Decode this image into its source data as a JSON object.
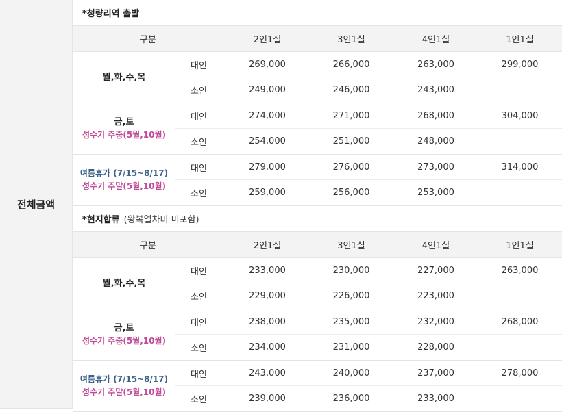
{
  "side_label": "전체금액",
  "sections": [
    {
      "title": "*청량리역 출발",
      "note": "",
      "headers": [
        "구분",
        "2인1실",
        "3인1실",
        "4인1실",
        "1인1실"
      ],
      "groups": [
        {
          "line1": "월,화,수,목",
          "line2": "",
          "rows": [
            {
              "type": "대인",
              "v": [
                "269,000",
                "266,000",
                "263,000",
                "299,000"
              ]
            },
            {
              "type": "소인",
              "v": [
                "249,000",
                "246,000",
                "243,000",
                ""
              ]
            }
          ]
        },
        {
          "line1": "금,토",
          "line2": "성수기 주중(5월,10월)",
          "rows": [
            {
              "type": "대인",
              "v": [
                "274,000",
                "271,000",
                "268,000",
                "304,000"
              ]
            },
            {
              "type": "소인",
              "v": [
                "254,000",
                "251,000",
                "248,000",
                ""
              ]
            }
          ]
        },
        {
          "line1": "여름휴가 (7/15~8/17)",
          "line2": "성수기 주말(5월,10월)",
          "rows": [
            {
              "type": "대인",
              "v": [
                "279,000",
                "276,000",
                "273,000",
                "314,000"
              ]
            },
            {
              "type": "소인",
              "v": [
                "259,000",
                "256,000",
                "253,000",
                ""
              ]
            }
          ]
        }
      ]
    },
    {
      "title": "*현지합류",
      "note": "(왕복열차비 미포함)",
      "headers": [
        "구분",
        "2인1실",
        "3인1실",
        "4인1실",
        "1인1실"
      ],
      "groups": [
        {
          "line1": "월,화,수,목",
          "line2": "",
          "rows": [
            {
              "type": "대인",
              "v": [
                "233,000",
                "230,000",
                "227,000",
                "263,000"
              ]
            },
            {
              "type": "소인",
              "v": [
                "229,000",
                "226,000",
                "223,000",
                ""
              ]
            }
          ]
        },
        {
          "line1": "금,토",
          "line2": "성수기 주중(5월,10월)",
          "rows": [
            {
              "type": "대인",
              "v": [
                "238,000",
                "235,000",
                "232,000",
                "268,000"
              ]
            },
            {
              "type": "소인",
              "v": [
                "234,000",
                "231,000",
                "228,000",
                ""
              ]
            }
          ]
        },
        {
          "line1": "여름휴가 (7/15~8/17)",
          "line2": "성수기 주말(5월,10월)",
          "rows": [
            {
              "type": "대인",
              "v": [
                "243,000",
                "240,000",
                "237,000",
                "278,000"
              ]
            },
            {
              "type": "소인",
              "v": [
                "239,000",
                "236,000",
                "233,000",
                ""
              ]
            }
          ]
        }
      ]
    }
  ]
}
